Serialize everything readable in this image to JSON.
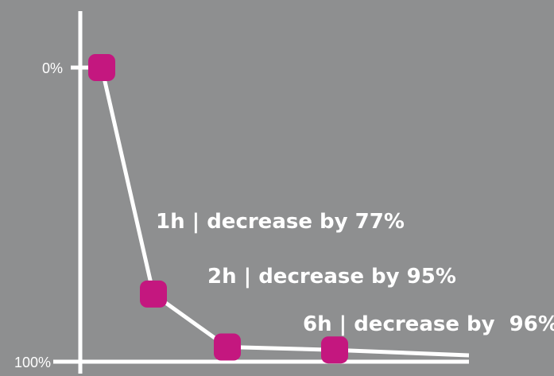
{
  "chart_data": {
    "type": "line",
    "title": "",
    "xlabel": "",
    "ylabel": "",
    "y_tick_labels": [
      "0%",
      "100%"
    ],
    "y_axis_inverted": true,
    "series": [
      {
        "points": [
          {
            "x": 0,
            "y": 0
          },
          {
            "x": 1,
            "y": 77
          },
          {
            "x": 2,
            "y": 95
          },
          {
            "x": 6,
            "y": 96
          }
        ]
      }
    ],
    "annotations": [
      {
        "text": "1h | decrease by 77%",
        "point": 1
      },
      {
        "text": "2h | decrease by 95%",
        "point": 2
      },
      {
        "text": "6h | decrease by  96%",
        "point": 3
      }
    ],
    "colors": {
      "background": "#8e8f90",
      "line": "#ffffff",
      "marker": "#c4177f",
      "text": "#ffffff"
    },
    "grid": false,
    "legend": "none"
  }
}
